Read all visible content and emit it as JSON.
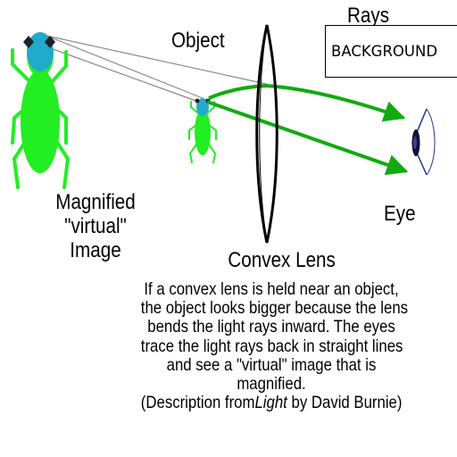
{
  "labels": {
    "object": "Object",
    "rays": "Rays",
    "background_box": "BACKGROUND",
    "magnified_lines": [
      "Magnified",
      "\"virtual\"",
      "Image"
    ],
    "convex_lens": "Convex Lens",
    "eye": "Eye"
  },
  "description": {
    "lines": [
      "If a convex lens is held near an object,",
      "the object looks bigger because the lens",
      "bends the light rays inward.  The eyes",
      "trace the light rays back in straight lines",
      "and see a \"virtual\" image that is",
      "magnified."
    ],
    "credit_prefix": "(Description from",
    "credit_title": "Light",
    "credit_suffix": " by David Burnie)"
  },
  "colors": {
    "insect_body": "#22ee22",
    "insect_head": "#22aacc",
    "ray_green": "#11aa11",
    "trace_gray": "#888888",
    "lens_outline": "#000000",
    "eye_outline": "#223399",
    "pupil": "#111133"
  },
  "icons": [
    "insect-icon",
    "lens-icon",
    "eye-icon",
    "arrow-icon"
  ]
}
